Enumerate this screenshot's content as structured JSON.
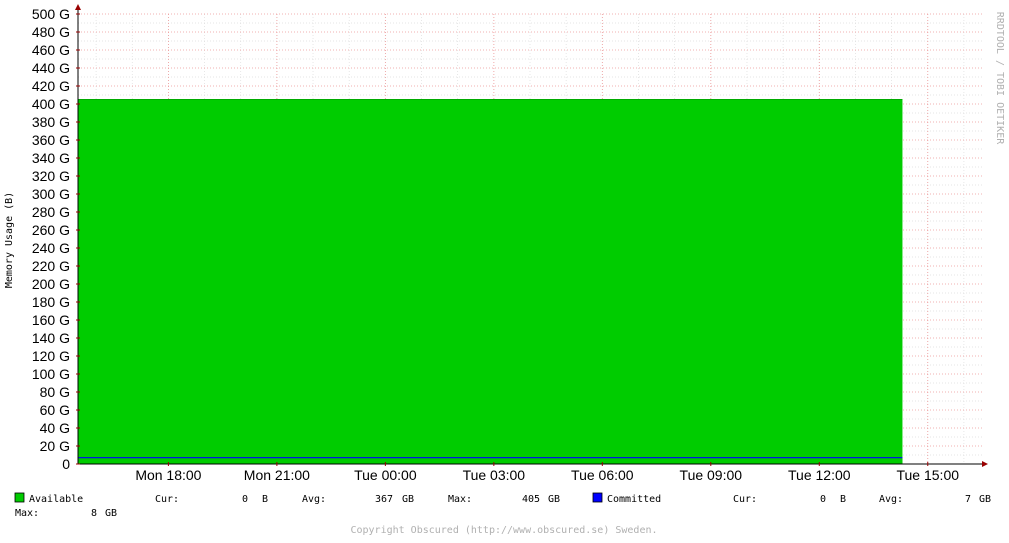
{
  "chart_data": {
    "type": "area",
    "ylabel": "Memory Usage (B)",
    "watermark": "RRDTOOL / TOBI OETIKER",
    "footer": "Copyright Obscured (http://www.obscured.se) Sweden.",
    "y_unit": "G",
    "ylim": [
      0,
      500
    ],
    "y_ticks": [
      "0",
      "20 G",
      "40 G",
      "60 G",
      "80 G",
      "100 G",
      "120 G",
      "140 G",
      "160 G",
      "180 G",
      "200 G",
      "220 G",
      "240 G",
      "260 G",
      "280 G",
      "300 G",
      "320 G",
      "340 G",
      "360 G",
      "380 G",
      "400 G",
      "420 G",
      "440 G",
      "460 G",
      "480 G",
      "500 G"
    ],
    "x_ticks": [
      "Mon 18:00",
      "Mon 21:00",
      "Tue 00:00",
      "Tue 03:00",
      "Tue 06:00",
      "Tue 09:00",
      "Tue 12:00",
      "Tue 15:00"
    ],
    "x_range_hours": [
      15.5,
      40.5
    ],
    "x_tick_hours": [
      18,
      21,
      24,
      27,
      30,
      33,
      36,
      39
    ],
    "data_end_hours": 38.3,
    "series": [
      {
        "name": "Available",
        "color": "#00cc00",
        "value": 405,
        "stats": {
          "cur_label": "Cur:",
          "cur": "0",
          "cur_unit": "B",
          "avg_label": "Avg:",
          "avg": "367",
          "avg_unit": "GB",
          "max_label": "Max:",
          "max": "405",
          "max_unit": "GB"
        }
      },
      {
        "name": "Committed",
        "color": "#0000ff",
        "value": 7,
        "stats": {
          "cur_label": "Cur:",
          "cur": "0",
          "cur_unit": "B",
          "avg_label": "Avg:",
          "avg": "7",
          "avg_unit": "GB",
          "max_label": "Max:",
          "max": "8",
          "max_unit": "GB"
        }
      }
    ]
  }
}
